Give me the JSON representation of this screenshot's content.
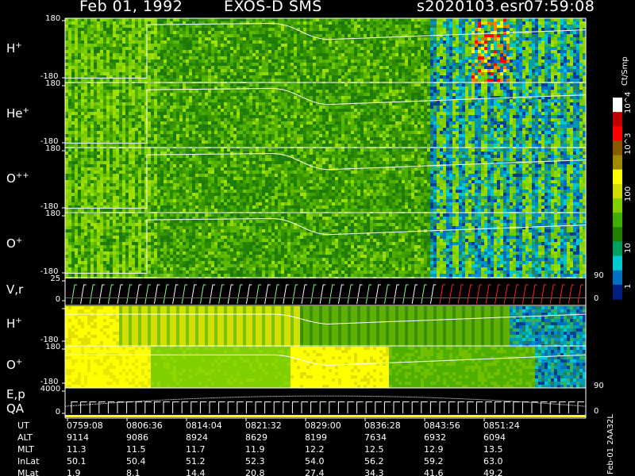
{
  "header": {
    "date": "Feb 01, 1992",
    "instrument": "EXOS-D SMS",
    "file": "s2020103.esr",
    "time": "07:59:08"
  },
  "colorbar": {
    "unit": "Ct/Smp",
    "labels": [
      "10^4",
      "10^3",
      "100",
      "10",
      "1"
    ],
    "colors": [
      "#ffffff",
      "#c00000",
      "#ff0000",
      "#8a5a00",
      "#a08a00",
      "#ffff00",
      "#d0e000",
      "#80d000",
      "#40b000",
      "#208000",
      "#00a060",
      "#00c8d0",
      "#0070c0",
      "#002080"
    ]
  },
  "panels": [
    {
      "id": "h",
      "label_base": "H",
      "label_sup": "+",
      "ytop": "180",
      "ybot": "-180",
      "kind": "ion"
    },
    {
      "id": "he",
      "label_base": "He",
      "label_sup": "+",
      "ytop": "180",
      "ybot": "-180",
      "kind": "ion"
    },
    {
      "id": "opp",
      "label_base": "O",
      "label_sup": "++",
      "ytop": "180",
      "ybot": "-180",
      "kind": "ion"
    },
    {
      "id": "op",
      "label_base": "O",
      "label_sup": "+",
      "ytop": "180",
      "ybot": "-180",
      "kind": "ion",
      "right_tick": "90"
    },
    {
      "id": "vr",
      "label_base": "V,r",
      "label_sup": "",
      "ytop": "25",
      "ybot": "0",
      "kind": "line",
      "right_tick": "0"
    },
    {
      "id": "h2",
      "label_base": "H",
      "label_sup": "+",
      "ytop": "",
      "ybot": "-180",
      "kind": "ion2"
    },
    {
      "id": "o2",
      "label_base": "O",
      "label_sup": "+",
      "ytop": "180",
      "ybot": "-180",
      "kind": "ion2",
      "right_tick": "90"
    },
    {
      "id": "ep",
      "label_base": "E,p",
      "label_sup": "",
      "label2": "QA",
      "ytop": "4000",
      "ybot": "0",
      "kind": "line2",
      "right_tick": "0"
    }
  ],
  "time_axis": {
    "rows": [
      {
        "name": "UT",
        "values": [
          "0759:08",
          "0806:36",
          "0814:04",
          "0821:32",
          "0829:00",
          "0836:28",
          "0843:56",
          "0851:24"
        ]
      },
      {
        "name": "ALT",
        "values": [
          "9114",
          "9086",
          "8924",
          "8629",
          "8199",
          "7634",
          "6932",
          "6094"
        ]
      },
      {
        "name": "MLT",
        "values": [
          "11.3",
          "11.5",
          "11.7",
          "11.9",
          "12.2",
          "12.5",
          "12.9",
          "13.5"
        ]
      },
      {
        "name": "InLat",
        "values": [
          "50.1",
          "50.4",
          "51.2",
          "52.3",
          "54.0",
          "56.2",
          "59.2",
          "63.0"
        ]
      },
      {
        "name": "MLat",
        "values": [
          "1.9",
          "8.1",
          "14.4",
          "20.8",
          "27.4",
          "34.3",
          "41.6",
          "49.2"
        ]
      }
    ]
  },
  "footer_tag": "Feb-01  2AA32L"
}
